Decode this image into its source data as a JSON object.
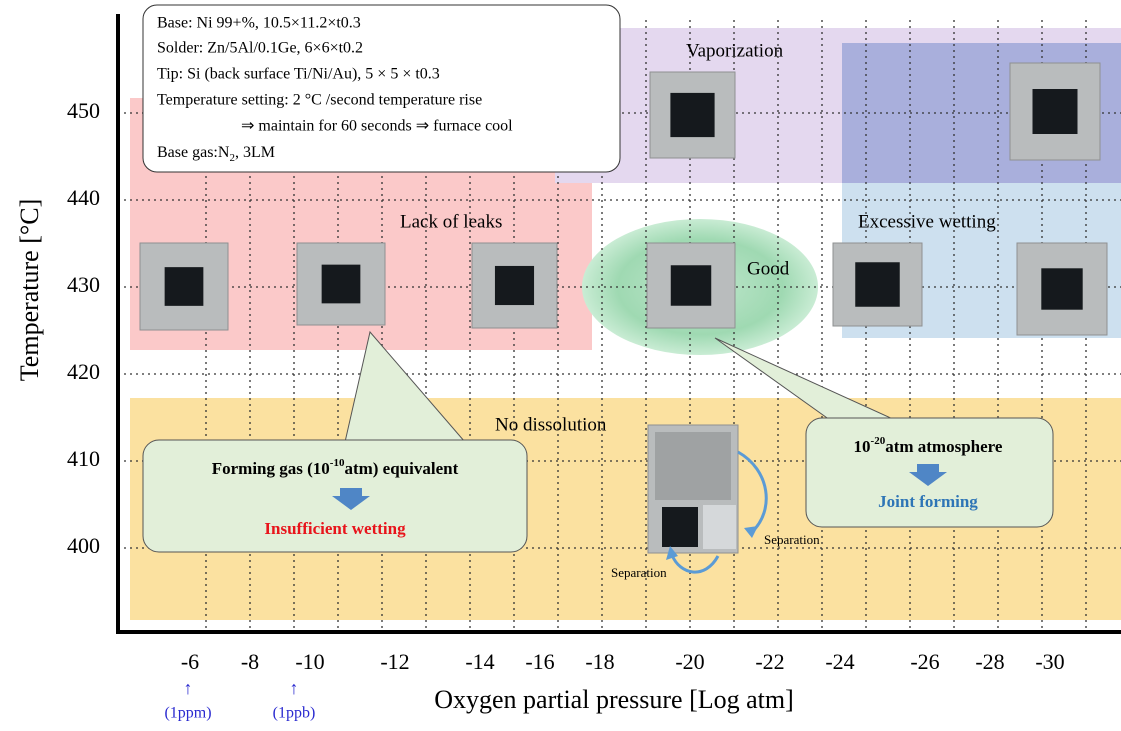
{
  "info_box": {
    "lines": [
      "Base: Ni 99+%, 10.5×11.2×t0.3",
      "Solder: Zn/5Al/0.1Ge, 6×6×t0.2",
      "Tip: Si (back surface Ti/Ni/Au), 5 × 5 × t0.3",
      "Temperature setting: 2 °C /second temperature rise",
      "⇒ maintain for 60 seconds ⇒ furnace cool"
    ],
    "base_gas": [
      "Base gas:N",
      "2",
      ", 3LM"
    ]
  },
  "y_axis": {
    "title": "Temperature [°C]",
    "ticks": [
      "450",
      "440",
      "430",
      "420",
      "410",
      "400"
    ]
  },
  "x_axis": {
    "title": "Oxygen partial pressure [Log atm]",
    "ticks": [
      "-6",
      "-8",
      "-10",
      "-12",
      "-14",
      "-16",
      "-18",
      "-20",
      "-22",
      "-24",
      "-26",
      "-28",
      "-30"
    ],
    "markers": [
      {
        "arrow": "↑",
        "label": "(1ppm)"
      },
      {
        "arrow": "↑",
        "label": "(1ppb)"
      }
    ]
  },
  "regions": {
    "vaporization": "Vaporization",
    "lack": "Lack of leaks",
    "good": "Good",
    "excessive": "Excessive wetting",
    "no_dissolution": "No dissolution"
  },
  "callouts": {
    "left": {
      "title": [
        "Forming gas (10",
        "-10",
        "atm) equivalent"
      ],
      "result": "Insufficient wetting"
    },
    "right": {
      "title": [
        "10",
        "-20",
        "atm atmosphere"
      ],
      "result": "Joint forming"
    }
  },
  "separation_labels": [
    "Separation",
    "Separation"
  ]
}
